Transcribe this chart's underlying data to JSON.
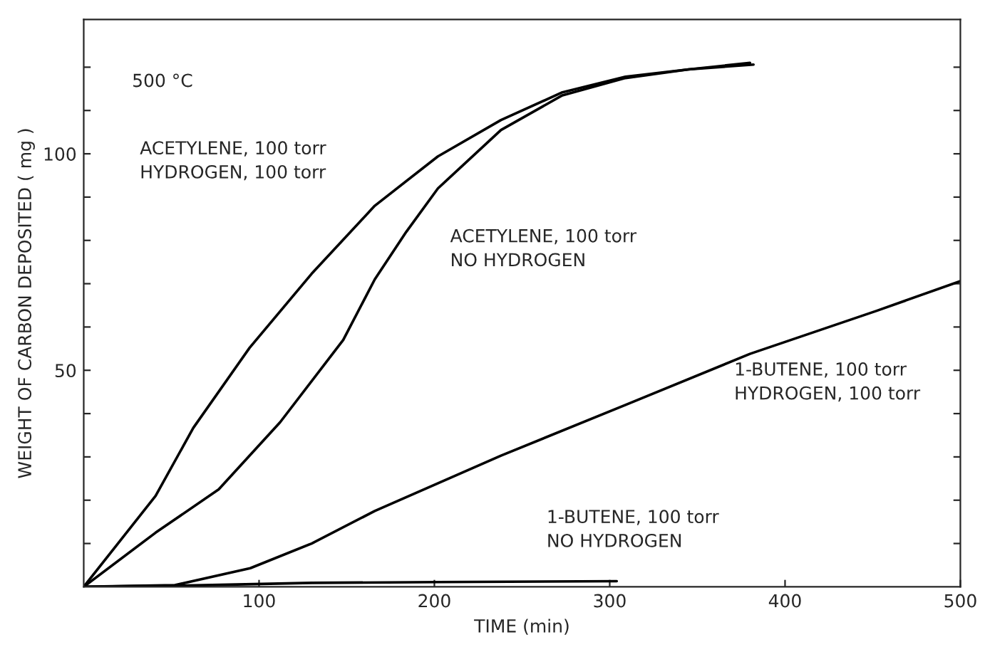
{
  "chart_data": {
    "type": "line",
    "xlabel": "TIME (min)",
    "ylabel": "WEIGHT OF CARBON DEPOSITED ( mg )",
    "xlim": [
      0,
      500
    ],
    "ylim": [
      0,
      131
    ],
    "xticks": [
      100,
      200,
      300,
      400,
      500
    ],
    "yticks": [
      {
        "value": 10,
        "label": null
      },
      {
        "value": 20,
        "label": null
      },
      {
        "value": 30,
        "label": null
      },
      {
        "value": 40,
        "label": null
      },
      50,
      {
        "value": 60,
        "label": null
      },
      {
        "value": 70,
        "label": null
      },
      {
        "value": 80,
        "label": null
      },
      {
        "value": 90,
        "label": null
      },
      100,
      {
        "value": 110,
        "label": null
      },
      {
        "value": 120,
        "label": null
      }
    ],
    "grid": false,
    "legend": false,
    "marker": "none",
    "line_style": "solid",
    "series": [
      {
        "name": "ACETYLENE, 100 torr\nHYDROGEN, 100 torr",
        "color": "#000000",
        "x": [
          0,
          41,
          62.5,
          94.6,
          130,
          166,
          202,
          238,
          273,
          309,
          345,
          380
        ],
        "values": [
          0,
          21,
          36.7,
          55.2,
          72.3,
          88,
          99.4,
          107.8,
          114.2,
          117.8,
          119.5,
          121
        ]
      },
      {
        "name": "ACETYLENE, 100 torr\nNO HYDROGEN",
        "color": "#000000",
        "x": [
          0,
          41,
          77,
          112,
          148,
          166,
          184,
          202,
          238,
          273,
          309,
          345,
          382
        ],
        "values": [
          0,
          12.5,
          22.5,
          38,
          57,
          71,
          82,
          92,
          105.5,
          113.5,
          117.5,
          119.5,
          120.6
        ]
      },
      {
        "name": "1-BUTENE, 100 torr\nHYDROGEN, 100 torr",
        "color": "#000000",
        "x": [
          0,
          52,
          95,
          130,
          166,
          238,
          309,
          380,
          452,
          500
        ],
        "values": [
          0,
          0.4,
          4.3,
          10,
          17.5,
          30.3,
          42,
          53.8,
          63.7,
          70.6
        ]
      },
      {
        "name": "1-BUTENE, 100 torr\nNO HYDROGEN",
        "color": "#000000",
        "x": [
          0,
          59,
          130,
          202,
          304
        ],
        "values": [
          0,
          0.3,
          0.9,
          1.1,
          1.3
        ]
      }
    ],
    "annotations": [
      "500 °C"
    ]
  }
}
